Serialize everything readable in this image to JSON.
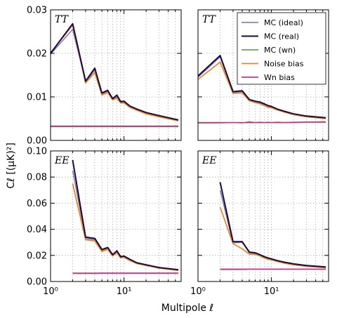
{
  "chart_data": {
    "type": "line",
    "xlabel": "Multipole ℓ",
    "ylabel": "Cℓ [(μK)²]",
    "x_scale": "log",
    "xlim": [
      1,
      60
    ],
    "x_ticks": [
      1,
      10
    ],
    "x_tick_labels": [
      "10⁰",
      "10¹"
    ],
    "grid": true,
    "legend": {
      "placement": "top-right",
      "panel": "tt-right",
      "entries": [
        "MC (ideal)",
        "MC (real)",
        "MC (wn)",
        "Noise bias",
        "Wn bias"
      ]
    },
    "series_styles": [
      {
        "name": "MC (ideal)",
        "color": "#7a6fb0",
        "width": 1.4
      },
      {
        "name": "MC (real)",
        "color": "#1c0a3f",
        "width": 2.0
      },
      {
        "name": "MC (wn)",
        "color": "#4a9a3c",
        "width": 1.4
      },
      {
        "name": "Noise bias",
        "color": "#e58a2a",
        "width": 1.8
      },
      {
        "name": "Wn bias",
        "color": "#c63a8e",
        "width": 1.8
      }
    ],
    "x": [
      2,
      3,
      4,
      5,
      6,
      7,
      8,
      9,
      10,
      12,
      15,
      20,
      30,
      55
    ],
    "panels": [
      {
        "id": "tt-left",
        "label": "TT",
        "ylim": [
          0,
          0.03
        ],
        "y_ticks": [
          0,
          0.01,
          0.02,
          0.03
        ],
        "y_tick_labels": [
          "0.00",
          "0.01",
          "0.02",
          "0.03"
        ],
        "series": [
          {
            "name": "MC (ideal)",
            "values": [
              0.0255,
              0.0134,
              0.0162,
              0.0107,
              0.0113,
              0.0094,
              0.01,
              0.0087,
              0.0088,
              0.0078,
              0.0071,
              0.0063,
              0.0056,
              0.0046
            ]
          },
          {
            "name": "MC (real)",
            "values": [
              0.0268,
              0.0136,
              0.0166,
              0.0109,
              0.0115,
              0.0096,
              0.0104,
              0.0089,
              0.009,
              0.0079,
              0.0072,
              0.0064,
              0.0057,
              0.0047
            ]
          },
          {
            "name": "MC (wn)",
            "values": [
              0.0033,
              0.0033,
              0.0033,
              0.0033,
              0.0033,
              0.0033,
              0.0033,
              0.0033,
              0.0033,
              0.0033,
              0.0033,
              0.0033,
              0.0033,
              0.0033
            ]
          },
          {
            "name": "Noise bias",
            "values": [
              0.0265,
              0.0132,
              0.0156,
              0.0104,
              0.011,
              0.0093,
              0.0097,
              0.0086,
              0.0086,
              0.0076,
              0.0069,
              0.0061,
              0.0054,
              0.0045
            ]
          },
          {
            "name": "Wn bias",
            "values": [
              0.0032,
              0.0032,
              0.0032,
              0.0032,
              0.0032,
              0.0032,
              0.0032,
              0.0032,
              0.0032,
              0.0032,
              0.0032,
              0.0032,
              0.0032,
              0.0032
            ]
          }
        ],
        "start": {
          "x": 1,
          "values": {
            "MC (ideal)": 0.0198,
            "MC (real)": 0.02,
            "MC (wn)": 0.0033,
            "Noise bias": 0.0201,
            "Wn bias": 0.0032
          }
        }
      },
      {
        "id": "tt-right",
        "label": "TT",
        "ylim": [
          0,
          0.03
        ],
        "y_ticks": [
          0,
          0.01,
          0.02,
          0.03
        ],
        "y_tick_labels": [
          "",
          "",
          "",
          ""
        ],
        "series": [
          {
            "name": "MC (ideal)",
            "values": [
              0.0192,
              0.011,
              0.0112,
              0.0092,
              0.0088,
              0.0086,
              0.0082,
              0.0078,
              0.0077,
              0.0071,
              0.0066,
              0.006,
              0.0055,
              0.0051
            ]
          },
          {
            "name": "MC (real)",
            "values": [
              0.0195,
              0.0112,
              0.0114,
              0.0094,
              0.009,
              0.0088,
              0.0084,
              0.008,
              0.0078,
              0.0072,
              0.0067,
              0.0061,
              0.0056,
              0.0052
            ]
          },
          {
            "name": "MC (wn)",
            "values": [
              0.004,
              0.0041,
              0.004,
              0.0043,
              0.0041,
              0.0042,
              0.0041,
              0.0042,
              0.0041,
              0.0042,
              0.0041,
              0.0042,
              0.0042,
              0.0043
            ]
          },
          {
            "name": "Noise bias",
            "values": [
              0.018,
              0.0108,
              0.0109,
              0.0091,
              0.0087,
              0.0084,
              0.008,
              0.0076,
              0.0075,
              0.007,
              0.0065,
              0.0059,
              0.0054,
              0.005
            ]
          },
          {
            "name": "Wn bias",
            "values": [
              0.0041,
              0.0041,
              0.0041,
              0.0041,
              0.0041,
              0.0041,
              0.0041,
              0.0041,
              0.0041,
              0.0041,
              0.0041,
              0.0041,
              0.0042,
              0.0042
            ]
          }
        ],
        "start": {
          "x": 1,
          "values": {
            "MC (ideal)": 0.0145,
            "MC (real)": 0.0148,
            "MC (wn)": 0.004,
            "Noise bias": 0.014,
            "Wn bias": 0.0041
          }
        }
      },
      {
        "id": "ee-left",
        "label": "EE",
        "ylim": [
          0,
          0.1
        ],
        "y_ticks": [
          0,
          0.02,
          0.04,
          0.06,
          0.08,
          0.1
        ],
        "y_tick_labels": [
          "0.00",
          "0.02",
          "0.04",
          "0.06",
          "0.08",
          "0.10"
        ],
        "series": [
          {
            "name": "MC (ideal)",
            "values": [
              0.085,
              0.033,
              0.032,
              0.024,
              0.025,
              0.02,
              0.023,
              0.0185,
              0.019,
              0.0165,
              0.014,
              0.0125,
              0.0105,
              0.0088
            ]
          },
          {
            "name": "MC (real)",
            "values": [
              0.093,
              0.034,
              0.033,
              0.0245,
              0.026,
              0.0205,
              0.0235,
              0.019,
              0.0195,
              0.017,
              0.0143,
              0.0128,
              0.0107,
              0.009
            ]
          },
          {
            "name": "MC (wn)",
            "values": [
              0.0065,
              0.0065,
              0.0065,
              0.0065,
              0.0065,
              0.0065,
              0.0065,
              0.0065,
              0.0065,
              0.0065,
              0.0065,
              0.0065,
              0.0065,
              0.0065
            ]
          },
          {
            "name": "Noise bias",
            "values": [
              0.075,
              0.032,
              0.031,
              0.023,
              0.0245,
              0.0195,
              0.022,
              0.018,
              0.0185,
              0.016,
              0.0137,
              0.0122,
              0.0102,
              0.0085
            ]
          },
          {
            "name": "Wn bias",
            "values": [
              0.0062,
              0.0062,
              0.0062,
              0.0063,
              0.0063,
              0.0063,
              0.0063,
              0.0063,
              0.0063,
              0.0063,
              0.0063,
              0.0063,
              0.0063,
              0.0063
            ]
          }
        ]
      },
      {
        "id": "ee-right",
        "label": "EE",
        "ylim": [
          0,
          0.1
        ],
        "y_ticks": [
          0,
          0.02,
          0.04,
          0.06,
          0.08,
          0.1
        ],
        "y_tick_labels": [
          "",
          "",
          "",
          "",
          "",
          ""
        ],
        "series": [
          {
            "name": "MC (ideal)",
            "values": [
              0.07,
              0.0295,
              0.03,
              0.022,
              0.0215,
              0.02,
              0.0185,
              0.0175,
              0.017,
              0.0158,
              0.0145,
              0.0132,
              0.012,
              0.011
            ]
          },
          {
            "name": "MC (real)",
            "values": [
              0.076,
              0.0305,
              0.0305,
              0.0225,
              0.022,
              0.0205,
              0.019,
              0.018,
              0.0173,
              0.016,
              0.0148,
              0.0135,
              0.0122,
              0.0112
            ]
          },
          {
            "name": "MC (wn)",
            "values": [
              0.0095,
              0.0095,
              0.0095,
              0.0095,
              0.0095,
              0.0095,
              0.0095,
              0.0095,
              0.0095,
              0.0095,
              0.0095,
              0.0095,
              0.0095,
              0.0095
            ]
          },
          {
            "name": "Noise bias",
            "values": [
              0.057,
              0.029,
              0.025,
              0.021,
              0.0208,
              0.0195,
              0.018,
              0.017,
              0.0165,
              0.0153,
              0.014,
              0.0128,
              0.0116,
              0.0106
            ]
          },
          {
            "name": "Wn bias",
            "values": [
              0.0093,
              0.0093,
              0.0093,
              0.0094,
              0.0094,
              0.0094,
              0.0094,
              0.0094,
              0.0094,
              0.0094,
              0.0094,
              0.0094,
              0.0094,
              0.0094
            ]
          }
        ]
      }
    ]
  }
}
